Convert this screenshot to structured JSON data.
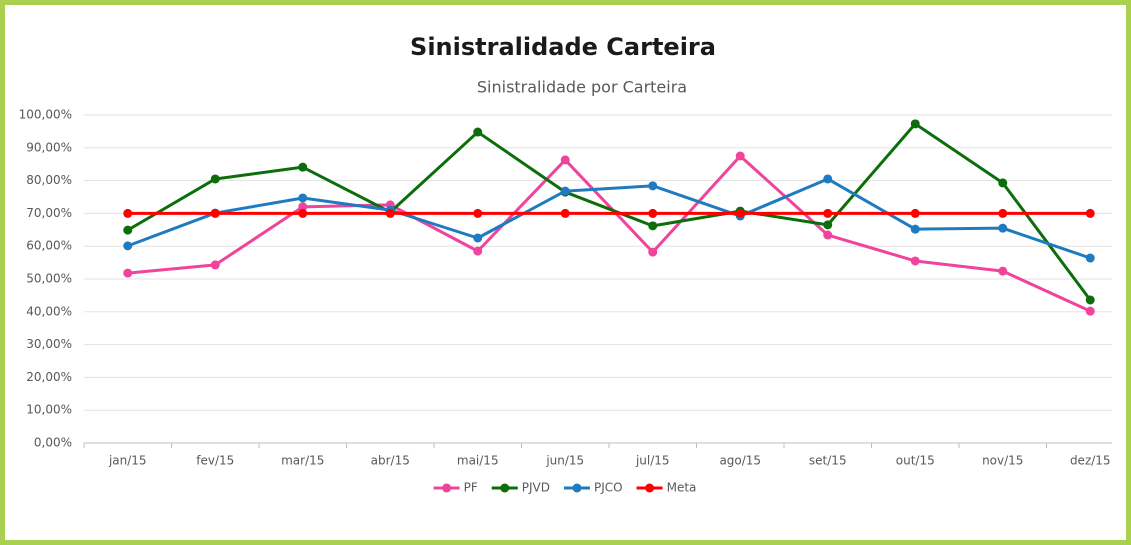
{
  "chart_data": {
    "type": "line",
    "title": "Sinistralidade Carteira",
    "subtitle": "Sinistralidade por Carteira",
    "categories": [
      "jan/15",
      "fev/15",
      "mar/15",
      "abr/15",
      "mai/15",
      "jun/15",
      "jul/15",
      "ago/15",
      "set/15",
      "out/15",
      "nov/15",
      "dez/15"
    ],
    "series": [
      {
        "name": "PF",
        "color": "#f0439b",
        "values": [
          51.8,
          54.3,
          72.0,
          72.6,
          58.5,
          86.3,
          58.2,
          87.5,
          63.4,
          55.5,
          52.4,
          40.2
        ]
      },
      {
        "name": "PJVD",
        "color": "#0b6e0b",
        "values": [
          64.9,
          80.5,
          84.1,
          70.4,
          94.8,
          76.5,
          66.2,
          70.7,
          66.5,
          97.3,
          79.3,
          43.6
        ]
      },
      {
        "name": "PJCO",
        "color": "#1f7bc1",
        "values": [
          60.1,
          70.1,
          74.7,
          71.0,
          62.5,
          76.8,
          78.4,
          69.2,
          80.5,
          65.2,
          65.5,
          56.4
        ]
      },
      {
        "name": "Meta",
        "color": "#ff0000",
        "values": [
          70,
          70,
          70,
          70,
          70,
          70,
          70,
          70,
          70,
          70,
          70,
          70
        ]
      }
    ],
    "ylim": [
      0,
      100
    ],
    "yticks": [
      {
        "value": 0,
        "label": "0,00%"
      },
      {
        "value": 10,
        "label": "10,00%"
      },
      {
        "value": 20,
        "label": "20,00%"
      },
      {
        "value": 30,
        "label": "30,00%"
      },
      {
        "value": 40,
        "label": "40,00%"
      },
      {
        "value": 50,
        "label": "50,00%"
      },
      {
        "value": 60,
        "label": "60,00%"
      },
      {
        "value": 70,
        "label": "70,00%"
      },
      {
        "value": 80,
        "label": "80,00%"
      },
      {
        "value": 90,
        "label": "90,00%"
      },
      {
        "value": 100,
        "label": "100,00%"
      }
    ],
    "grid": true,
    "legend": "bottom"
  }
}
